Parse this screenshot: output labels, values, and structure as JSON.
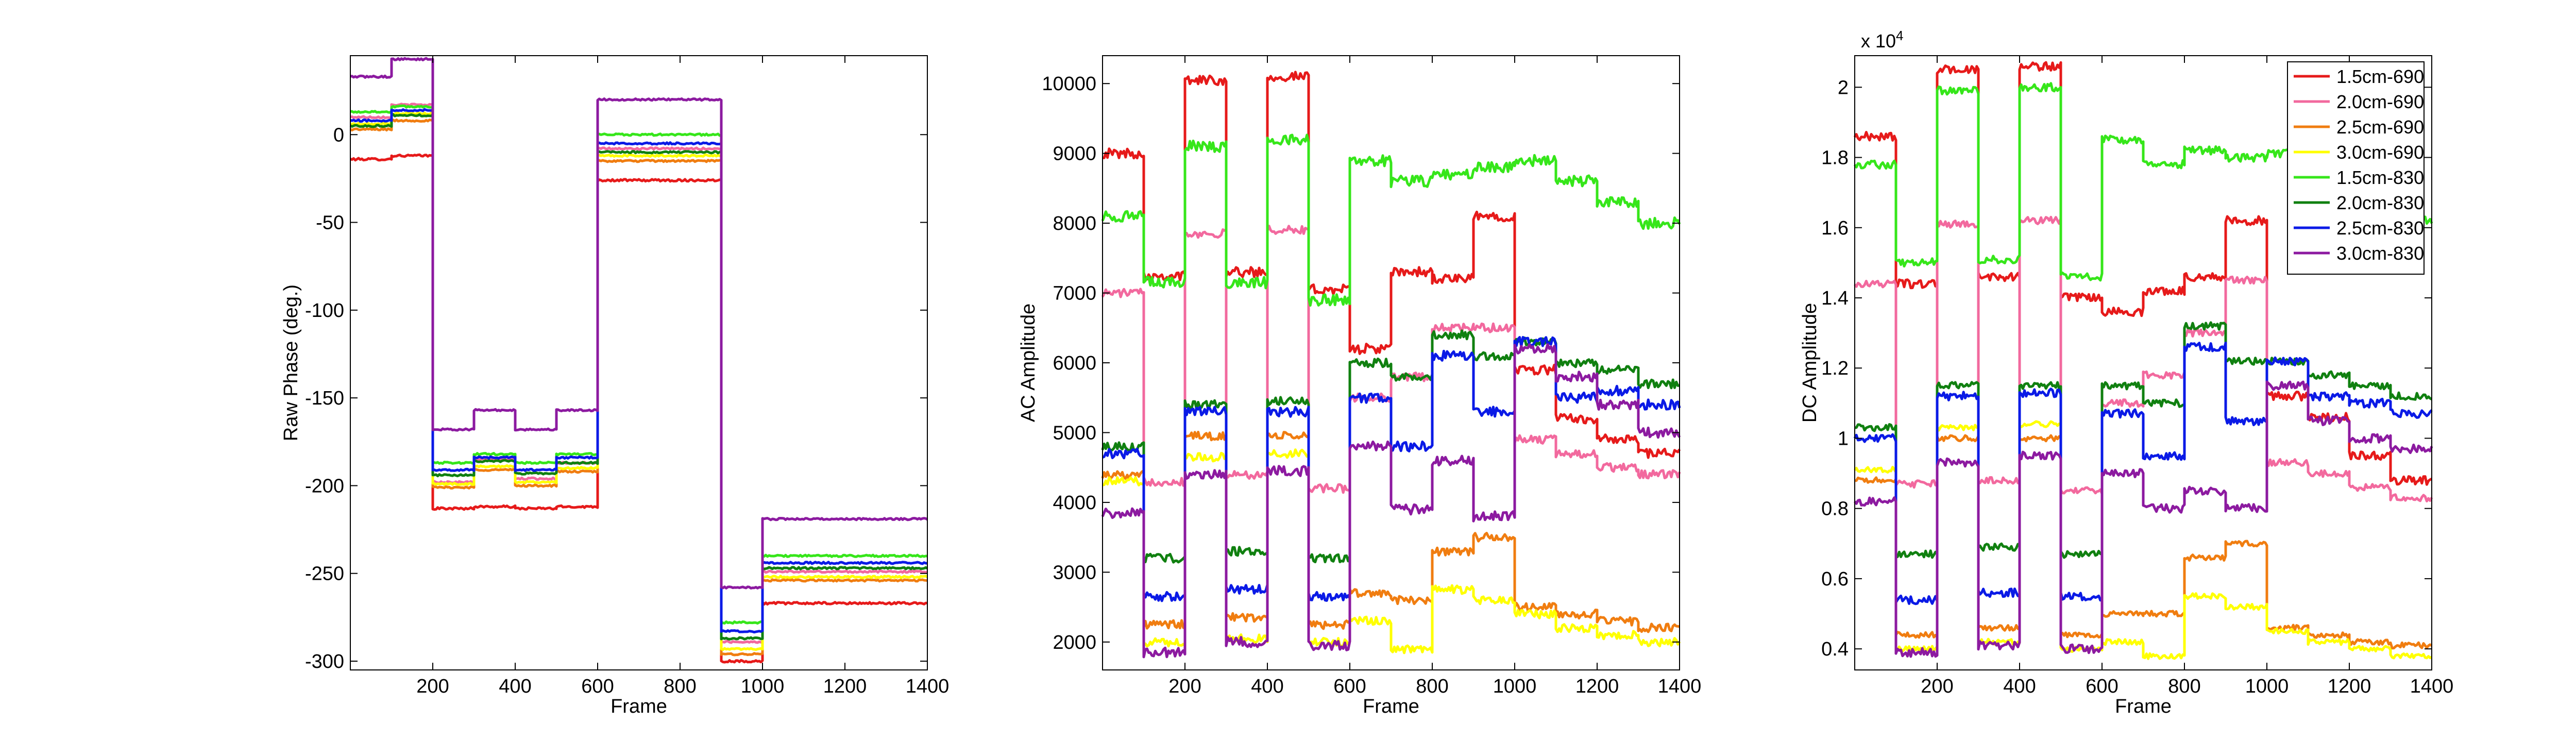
{
  "colors": {
    "red": "#e61a1a",
    "pink": "#f2699e",
    "orange": "#f07d10",
    "yellow": "#ffff00",
    "lightgreen": "#36e61a",
    "darkgreen": "#108010",
    "blue": "#0a1ae6",
    "purple": "#8c1aa0"
  },
  "chart_data": [
    {
      "type": "line",
      "title": "",
      "xlabel": "Frame",
      "ylabel": "Raw Phase (deg.)",
      "xlim": [
        0,
        1400
      ],
      "ylim": [
        -305,
        45
      ],
      "xticks": [
        200,
        400,
        600,
        800,
        1000,
        1200,
        1400
      ],
      "yticks": [
        0,
        -50,
        -100,
        -150,
        -200,
        -250,
        -300
      ],
      "grid": false,
      "segments": [
        0,
        100,
        200,
        300,
        400,
        500,
        600,
        900,
        1000,
        1400
      ],
      "series": [
        {
          "name": "1.5cm-690",
          "color": "#e61a1a",
          "levels": [
            -14,
            -12,
            -213,
            -212,
            -213,
            -212,
            -26,
            -300,
            -267,
            -267
          ],
          "noise": 0.6
        },
        {
          "name": "2.0cm-690",
          "color": "#f2699e",
          "levels": [
            10,
            17,
            -198,
            -185,
            -196,
            -187,
            -8,
            -289,
            -249,
            -249
          ],
          "noise": 0.5
        },
        {
          "name": "2.5cm-690",
          "color": "#f07d10",
          "levels": [
            3,
            8,
            -201,
            -191,
            -200,
            -192,
            -15,
            -296,
            -254,
            -254
          ],
          "noise": 0.5
        },
        {
          "name": "3.0cm-690",
          "color": "#ffff00",
          "levels": [
            6,
            12,
            -199,
            -189,
            -198,
            -190,
            -12,
            -293,
            -252,
            -252
          ],
          "noise": 0.5
        },
        {
          "name": "1.5cm-830",
          "color": "#36e61a",
          "levels": [
            13,
            16,
            -187,
            -182,
            -187,
            -182,
            0,
            -278,
            -240,
            -240
          ],
          "noise": 0.5
        },
        {
          "name": "2.0cm-830",
          "color": "#108010",
          "levels": [
            5,
            11,
            -194,
            -186,
            -193,
            -187,
            -10,
            -287,
            -247,
            -247
          ],
          "noise": 0.5
        },
        {
          "name": "2.5cm-830",
          "color": "#0a1ae6",
          "levels": [
            8,
            14,
            -191,
            -184,
            -191,
            -184,
            -5,
            -283,
            -244,
            -244
          ],
          "noise": 0.5
        },
        {
          "name": "3.0cm-830",
          "color": "#8c1aa0",
          "levels": [
            33,
            43,
            -168,
            -157,
            -168,
            -157,
            20,
            -258,
            -219,
            -219
          ],
          "noise": 0.5
        }
      ]
    },
    {
      "type": "line",
      "title": "",
      "xlabel": "Frame",
      "ylabel": "AC Amplitude",
      "xlim": [
        0,
        1400
      ],
      "ylim": [
        1600,
        10400
      ],
      "xticks": [
        200,
        400,
        600,
        800,
        1000,
        1200,
        1400
      ],
      "yticks": [
        2000,
        3000,
        4000,
        5000,
        6000,
        7000,
        8000,
        9000,
        10000
      ],
      "grid": false,
      "segments": [
        0,
        100,
        200,
        300,
        400,
        500,
        600,
        700,
        800,
        900,
        1000,
        1100,
        1200,
        1300,
        1400
      ],
      "series": [
        {
          "name": "1.5cm-690",
          "color": "#e61a1a",
          "levels": [
            9000,
            7250,
            10050,
            7300,
            10100,
            7050,
            6200,
            7300,
            7200,
            8100,
            5900,
            5200,
            4900,
            4700,
            4700
          ],
          "noise": 70
        },
        {
          "name": "2.0cm-690",
          "color": "#f2699e",
          "levels": [
            7000,
            4300,
            7850,
            4400,
            7900,
            4200,
            5500,
            5800,
            6500,
            6500,
            4900,
            4700,
            4500,
            4400,
            4400
          ],
          "noise": 60
        },
        {
          "name": "2.5cm-690",
          "color": "#f07d10",
          "levels": [
            4400,
            2250,
            4950,
            2350,
            4950,
            2250,
            2700,
            2600,
            3300,
            3500,
            2500,
            2400,
            2300,
            2200,
            2250
          ],
          "noise": 60
        },
        {
          "name": "3.0cm-690",
          "color": "#ffff00",
          "levels": [
            4300,
            2000,
            4650,
            2050,
            4700,
            2000,
            2300,
            1900,
            2750,
            2600,
            2400,
            2200,
            2100,
            2000,
            2000
          ],
          "noise": 60
        },
        {
          "name": "1.5cm-830",
          "color": "#36e61a",
          "levels": [
            8100,
            7150,
            9100,
            7150,
            9200,
            6900,
            8900,
            8600,
            8700,
            8800,
            8900,
            8600,
            8300,
            8000,
            7900
          ],
          "noise": 80
        },
        {
          "name": "2.0cm-830",
          "color": "#108010",
          "levels": [
            4800,
            3200,
            5400,
            3300,
            5450,
            3200,
            6000,
            5800,
            6400,
            6100,
            6300,
            6000,
            5900,
            5700,
            5750
          ],
          "noise": 60
        },
        {
          "name": "2.5cm-830",
          "color": "#0a1ae6",
          "levels": [
            4700,
            2650,
            5300,
            2750,
            5300,
            2650,
            5500,
            4800,
            6100,
            5300,
            6300,
            5500,
            5600,
            5400,
            5400
          ],
          "noise": 70
        },
        {
          "name": "3.0cm-830",
          "color": "#8c1aa0",
          "levels": [
            3850,
            1850,
            4400,
            2000,
            4450,
            1950,
            4800,
            3900,
            4600,
            3800,
            6200,
            5800,
            5400,
            5000,
            5000
          ],
          "noise": 70
        }
      ]
    },
    {
      "type": "line",
      "title": "",
      "xlabel": "Frame",
      "ylabel": "DC Amplitude",
      "exponent_label": "x 10",
      "exponent_power": "4",
      "xlim": [
        0,
        1400
      ],
      "ylim": [
        0.34,
        2.09
      ],
      "xticks": [
        200,
        400,
        600,
        800,
        1000,
        1200,
        1400
      ],
      "yticks": [
        0.4,
        0.6,
        0.8,
        1,
        1.2,
        1.4,
        1.6,
        1.8,
        2
      ],
      "ytick_labels": [
        "0.4",
        "0.6",
        "0.8",
        "1",
        "1.2",
        "1.4",
        "1.6",
        "1.8",
        "2"
      ],
      "grid": false,
      "legend": "top-right",
      "segments": [
        0,
        100,
        200,
        300,
        400,
        500,
        600,
        700,
        800,
        900,
        1000,
        1100,
        1200,
        1300,
        1400
      ],
      "series": [
        {
          "name": "1.5cm-690",
          "color": "#e61a1a",
          "levels": [
            1.86,
            1.44,
            2.05,
            1.46,
            2.06,
            1.4,
            1.36,
            1.42,
            1.46,
            1.62,
            1.12,
            1.06,
            0.95,
            0.88,
            0.89
          ],
          "noise": 0.012
        },
        {
          "name": "2.0cm-690",
          "color": "#f2699e",
          "levels": [
            1.44,
            0.87,
            1.61,
            0.88,
            1.62,
            0.85,
            1.1,
            1.18,
            1.3,
            1.45,
            0.93,
            0.9,
            0.86,
            0.83,
            0.83
          ],
          "noise": 0.01
        },
        {
          "name": "2.5cm-690",
          "color": "#f07d10",
          "levels": [
            0.88,
            0.44,
            1.0,
            0.46,
            1.0,
            0.44,
            0.5,
            0.5,
            0.66,
            0.7,
            0.46,
            0.44,
            0.42,
            0.41,
            0.42
          ],
          "noise": 0.008
        },
        {
          "name": "3.0cm-690",
          "color": "#ffff00",
          "levels": [
            0.91,
            0.4,
            1.03,
            0.42,
            1.04,
            0.4,
            0.42,
            0.38,
            0.55,
            0.52,
            0.45,
            0.42,
            0.4,
            0.38,
            0.38
          ],
          "noise": 0.008
        },
        {
          "name": "1.5cm-830",
          "color": "#36e61a",
          "levels": [
            1.78,
            1.5,
            1.99,
            1.51,
            2.0,
            1.46,
            1.85,
            1.78,
            1.82,
            1.8,
            1.81,
            1.71,
            1.67,
            1.62,
            1.6
          ],
          "noise": 0.012
        },
        {
          "name": "2.0cm-830",
          "color": "#108010",
          "levels": [
            1.03,
            0.67,
            1.15,
            0.69,
            1.15,
            0.67,
            1.15,
            1.1,
            1.32,
            1.22,
            1.22,
            1.18,
            1.15,
            1.12,
            1.12
          ],
          "noise": 0.01
        },
        {
          "name": "2.5cm-830",
          "color": "#0a1ae6",
          "levels": [
            1.0,
            0.54,
            1.12,
            0.56,
            1.13,
            0.55,
            1.07,
            0.95,
            1.26,
            1.05,
            1.22,
            1.12,
            1.1,
            1.07,
            1.07
          ],
          "noise": 0.012
        },
        {
          "name": "3.0cm-830",
          "color": "#8c1aa0",
          "levels": [
            0.82,
            0.39,
            0.93,
            0.41,
            0.95,
            0.4,
            0.9,
            0.8,
            0.85,
            0.8,
            1.15,
            1.05,
            1.0,
            0.97,
            0.97
          ],
          "noise": 0.012
        }
      ]
    }
  ]
}
